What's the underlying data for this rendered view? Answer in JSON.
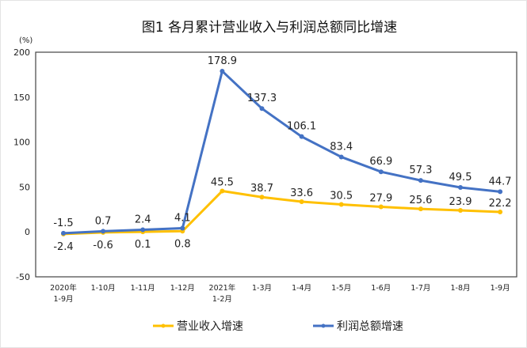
{
  "chart_data": {
    "type": "line",
    "title": "图1  各月累计营业收入与利润总额同比增速",
    "ylabel": "(%)",
    "xlabel": "",
    "ylim": [
      -50,
      200
    ],
    "yticks": [
      -50,
      0,
      50,
      100,
      150,
      200
    ],
    "grid": false,
    "legend": "bottom",
    "categories": [
      [
        "2020年",
        "1-9月"
      ],
      [
        "1-10月"
      ],
      [
        "1-11月"
      ],
      [
        "1-12月"
      ],
      [
        "2021年",
        "1-2月"
      ],
      [
        "1-3月"
      ],
      [
        "1-4月"
      ],
      [
        "1-5月"
      ],
      [
        "1-6月"
      ],
      [
        "1-7月"
      ],
      [
        "1-8月"
      ],
      [
        "1-9月"
      ]
    ],
    "series": [
      {
        "name": "营业收入增速",
        "color": "#FFC000",
        "values": [
          -2.4,
          -0.6,
          0.1,
          0.8,
          45.5,
          38.7,
          33.6,
          30.5,
          27.9,
          25.6,
          23.9,
          22.2
        ]
      },
      {
        "name": "利润总额增速",
        "color": "#4472C4",
        "values": [
          -1.5,
          0.7,
          2.4,
          4.1,
          178.9,
          137.3,
          106.1,
          83.4,
          66.9,
          57.3,
          49.5,
          44.7
        ]
      }
    ]
  }
}
